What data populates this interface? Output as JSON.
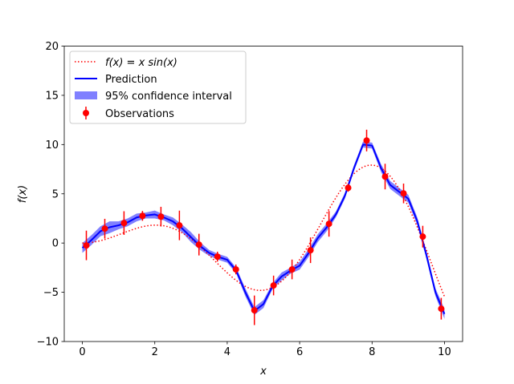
{
  "chart_data": {
    "type": "line",
    "xlabel": "x",
    "ylabel": "f(x)",
    "xlim": [
      -0.5,
      10.5
    ],
    "ylim": [
      -10,
      20
    ],
    "xticks": [
      0,
      2,
      4,
      6,
      8,
      10
    ],
    "yticks": [
      -10,
      -5,
      0,
      5,
      10,
      15,
      20
    ],
    "grid": false,
    "legend_placement": "upper-left",
    "legend": [
      {
        "label": "f(x) = x sin(x)",
        "style": "dotted",
        "color": "#ff0000"
      },
      {
        "label": "Prediction",
        "style": "solid",
        "color": "#0000ff"
      },
      {
        "label": "95% confidence interval",
        "style": "band",
        "color": "#8080ff"
      },
      {
        "label": "Observations",
        "style": "errorbar",
        "color": "#ff0000"
      }
    ],
    "true_function": "x*sin(x)",
    "observations": {
      "x": [
        0.11,
        0.62,
        1.15,
        1.66,
        2.17,
        2.68,
        3.22,
        3.73,
        4.24,
        4.75,
        5.28,
        5.79,
        6.3,
        6.81,
        7.34,
        7.85,
        8.36,
        8.87,
        9.4,
        9.91
      ],
      "y": [
        -0.24,
        1.46,
        2.03,
        2.76,
        2.68,
        1.79,
        -0.16,
        -1.38,
        -2.68,
        -6.83,
        -4.31,
        -2.68,
        -0.73,
        1.95,
        5.61,
        10.41,
        6.75,
        5.04,
        0.65,
        -6.67
      ],
      "err": [
        1.5,
        1.0,
        1.2,
        0.5,
        1.0,
        1.5,
        1.1,
        0.5,
        0.5,
        1.5,
        1.0,
        1.0,
        1.3,
        1.3,
        0.4,
        1.1,
        1.3,
        1.0,
        1.1,
        1.1
      ]
    },
    "prediction": {
      "x": [
        0,
        0.25,
        0.5,
        0.75,
        1,
        1.25,
        1.5,
        1.75,
        2,
        2.25,
        2.5,
        2.75,
        3,
        3.25,
        3.5,
        3.75,
        4,
        4.25,
        4.5,
        4.75,
        5,
        5.25,
        5.5,
        5.75,
        6,
        6.25,
        6.5,
        6.75,
        7,
        7.25,
        7.5,
        7.75,
        8,
        8.25,
        8.5,
        8.75,
        9,
        9.25,
        9.5,
        9.75,
        10
      ],
      "y": [
        -0.5,
        0.3,
        1.2,
        1.6,
        1.8,
        2.1,
        2.6,
        2.8,
        2.9,
        2.6,
        2.2,
        1.5,
        0.6,
        -0.3,
        -1.0,
        -1.4,
        -1.7,
        -2.8,
        -5.0,
        -6.9,
        -6.2,
        -4.4,
        -3.4,
        -2.8,
        -2.3,
        -1.0,
        0.5,
        1.6,
        2.9,
        4.8,
        7.6,
        10.0,
        9.9,
        7.6,
        5.9,
        5.2,
        4.5,
        2.2,
        -1.2,
        -5.0,
        -7.2
      ],
      "ci_halfwidth": [
        0.5,
        0.5,
        0.5,
        0.6,
        0.4,
        0.4,
        0.4,
        0.3,
        0.4,
        0.3,
        0.4,
        0.4,
        0.5,
        0.4,
        0.3,
        0.3,
        0.3,
        0.3,
        0.4,
        0.4,
        0.4,
        0.3,
        0.4,
        0.3,
        0.4,
        0.4,
        0.4,
        0.4,
        0.3,
        0.3,
        0.3,
        0.3,
        0.3,
        0.4,
        0.4,
        0.4,
        0.4,
        0.4,
        0.4,
        0.4,
        0.5
      ]
    }
  }
}
